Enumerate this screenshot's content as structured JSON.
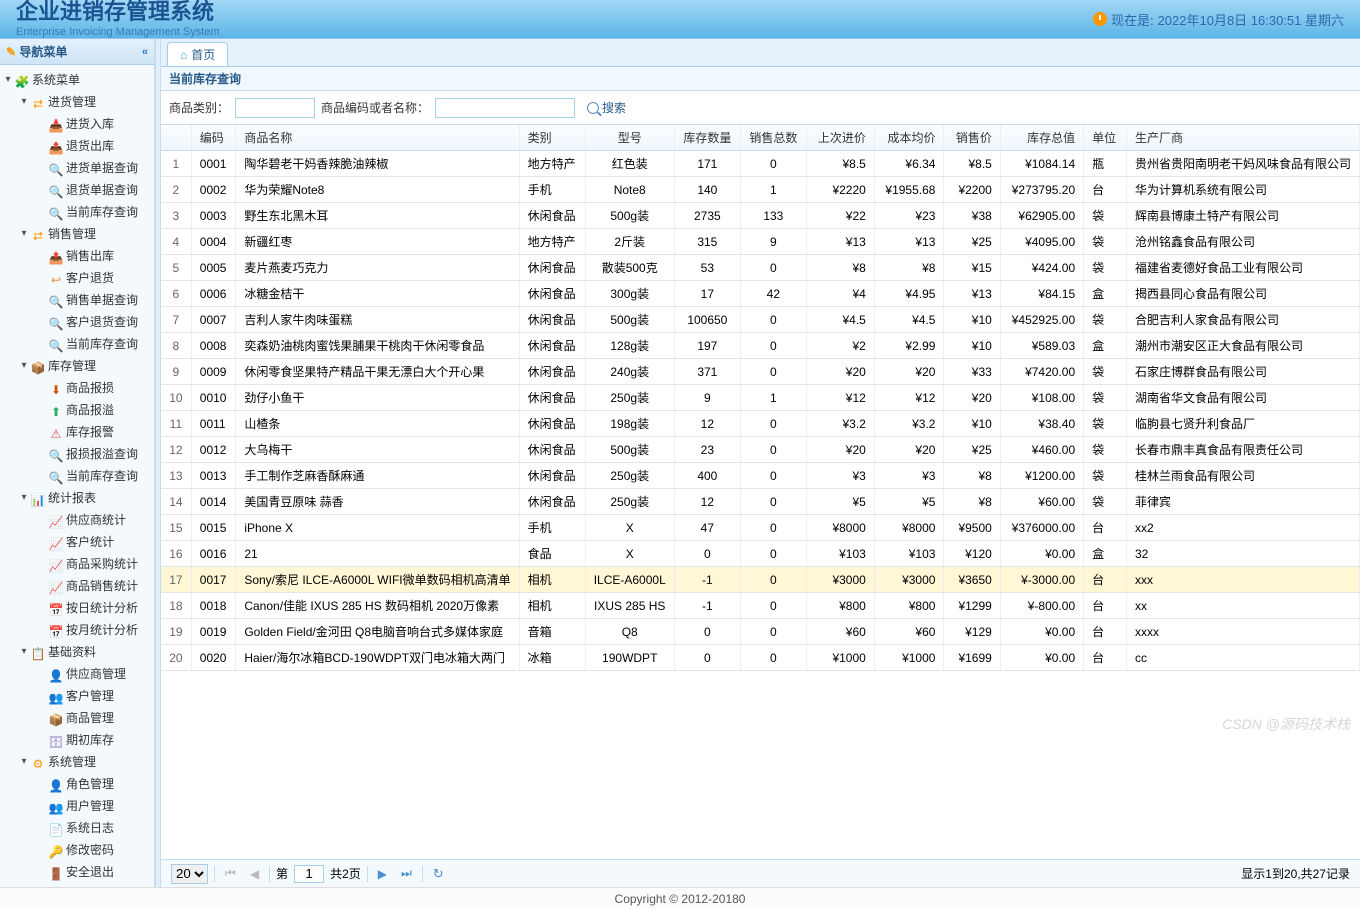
{
  "header": {
    "title": "企业进销存管理系统",
    "subtitle": "Enterprise Invoicing Management System",
    "time_prefix": "现在是:",
    "time_value": "2022年10月8日 16:30:51 星期六"
  },
  "sidebar": {
    "title": "导航菜单",
    "collapse_glyph": "«",
    "tree": [
      {
        "level": 0,
        "expand": "-",
        "icon": "🧩",
        "label": "系统菜单",
        "color": "#4caf50"
      },
      {
        "level": 1,
        "expand": "-",
        "icon": "⇄",
        "label": "进货管理",
        "color": "#ff9800"
      },
      {
        "level": 2,
        "expand": "",
        "icon": "📥",
        "label": "进货入库",
        "color": "#e69138"
      },
      {
        "level": 2,
        "expand": "",
        "icon": "📤",
        "label": "退货出库",
        "color": "#e69138"
      },
      {
        "level": 2,
        "expand": "",
        "icon": "🔍",
        "label": "进货单据查询",
        "color": "#3a7ab5"
      },
      {
        "level": 2,
        "expand": "",
        "icon": "🔍",
        "label": "退货单据查询",
        "color": "#3a7ab5"
      },
      {
        "level": 2,
        "expand": "",
        "icon": "🔍",
        "label": "当前库存查询",
        "color": "#3a7ab5"
      },
      {
        "level": 1,
        "expand": "-",
        "icon": "⇄",
        "label": "销售管理",
        "color": "#ff9800"
      },
      {
        "level": 2,
        "expand": "",
        "icon": "📤",
        "label": "销售出库",
        "color": "#e69138"
      },
      {
        "level": 2,
        "expand": "",
        "icon": "↩",
        "label": "客户退货",
        "color": "#e69138"
      },
      {
        "level": 2,
        "expand": "",
        "icon": "🔍",
        "label": "销售单据查询",
        "color": "#3a7ab5"
      },
      {
        "level": 2,
        "expand": "",
        "icon": "🔍",
        "label": "客户退货查询",
        "color": "#3a7ab5"
      },
      {
        "level": 2,
        "expand": "",
        "icon": "🔍",
        "label": "当前库存查询",
        "color": "#3a7ab5"
      },
      {
        "level": 1,
        "expand": "-",
        "icon": "📦",
        "label": "库存管理",
        "color": "#ff9800"
      },
      {
        "level": 2,
        "expand": "",
        "icon": "⬇",
        "label": "商品报损",
        "color": "#d35400"
      },
      {
        "level": 2,
        "expand": "",
        "icon": "⬆",
        "label": "商品报溢",
        "color": "#27ae60"
      },
      {
        "level": 2,
        "expand": "",
        "icon": "⚠",
        "label": "库存报警",
        "color": "#e74c3c"
      },
      {
        "level": 2,
        "expand": "",
        "icon": "🔍",
        "label": "报损报溢查询",
        "color": "#3a7ab5"
      },
      {
        "level": 2,
        "expand": "",
        "icon": "🔍",
        "label": "当前库存查询",
        "color": "#3a7ab5"
      },
      {
        "level": 1,
        "expand": "-",
        "icon": "📊",
        "label": "统计报表",
        "color": "#ff9800"
      },
      {
        "level": 2,
        "expand": "",
        "icon": "📈",
        "label": "供应商统计",
        "color": "#3498db"
      },
      {
        "level": 2,
        "expand": "",
        "icon": "📈",
        "label": "客户统计",
        "color": "#3498db"
      },
      {
        "level": 2,
        "expand": "",
        "icon": "📈",
        "label": "商品采购统计",
        "color": "#3498db"
      },
      {
        "level": 2,
        "expand": "",
        "icon": "📈",
        "label": "商品销售统计",
        "color": "#3498db"
      },
      {
        "level": 2,
        "expand": "",
        "icon": "📅",
        "label": "按日统计分析",
        "color": "#3498db"
      },
      {
        "level": 2,
        "expand": "",
        "icon": "📅",
        "label": "按月统计分析",
        "color": "#3498db"
      },
      {
        "level": 1,
        "expand": "-",
        "icon": "📋",
        "label": "基础资料",
        "color": "#ff9800"
      },
      {
        "level": 2,
        "expand": "",
        "icon": "👤",
        "label": "供应商管理",
        "color": "#f39c12"
      },
      {
        "level": 2,
        "expand": "",
        "icon": "👥",
        "label": "客户管理",
        "color": "#3498db"
      },
      {
        "level": 2,
        "expand": "",
        "icon": "📦",
        "label": "商品管理",
        "color": "#e69138"
      },
      {
        "level": 2,
        "expand": "",
        "icon": "🗄",
        "label": "期初库存",
        "color": "#8e7cc3"
      },
      {
        "level": 1,
        "expand": "-",
        "icon": "⚙",
        "label": "系统管理",
        "color": "#ff9800"
      },
      {
        "level": 2,
        "expand": "",
        "icon": "👤",
        "label": "角色管理",
        "color": "#3498db"
      },
      {
        "level": 2,
        "expand": "",
        "icon": "👥",
        "label": "用户管理",
        "color": "#27ae60"
      },
      {
        "level": 2,
        "expand": "",
        "icon": "📄",
        "label": "系统日志",
        "color": "#95a5a6"
      },
      {
        "level": 2,
        "expand": "",
        "icon": "🔑",
        "label": "修改密码",
        "color": "#f39c12"
      },
      {
        "level": 2,
        "expand": "",
        "icon": "🚪",
        "label": "安全退出",
        "color": "#e74c3c"
      }
    ]
  },
  "tabs": {
    "home": "首页"
  },
  "panel": {
    "title": "当前库存查询"
  },
  "search": {
    "label_category": "商品类别：",
    "label_code_name": "商品编码或者名称：",
    "button": "搜索",
    "category_value": "",
    "name_value": ""
  },
  "columns": {
    "idx": "",
    "code": "编码",
    "name": "商品名称",
    "category": "类别",
    "model": "型号",
    "qty": "库存数量",
    "sold": "销售总数",
    "lastp": "上次进价",
    "avgp": "成本均价",
    "salep": "销售价",
    "total": "库存总值",
    "unit": "单位",
    "maker": "生产厂商"
  },
  "rows": [
    {
      "idx": 1,
      "code": "0001",
      "name": "陶华碧老干妈香辣脆油辣椒",
      "cat": "地方特产",
      "model": "红色装",
      "qty": "171",
      "sold": "0",
      "lastp": "¥8.5",
      "avgp": "¥6.34",
      "salep": "¥8.5",
      "total": "¥1084.14",
      "unit": "瓶",
      "maker": "贵州省贵阳南明老干妈风味食品有限公司"
    },
    {
      "idx": 2,
      "code": "0002",
      "name": "华为荣耀Note8",
      "cat": "手机",
      "model": "Note8",
      "qty": "140",
      "sold": "1",
      "lastp": "¥2220",
      "avgp": "¥1955.68",
      "salep": "¥2200",
      "total": "¥273795.20",
      "unit": "台",
      "maker": "华为计算机系统有限公司"
    },
    {
      "idx": 3,
      "code": "0003",
      "name": "野生东北黑木耳",
      "cat": "休闲食品",
      "model": "500g装",
      "qty": "2735",
      "sold": "133",
      "lastp": "¥22",
      "avgp": "¥23",
      "salep": "¥38",
      "total": "¥62905.00",
      "unit": "袋",
      "maker": "辉南县博康土特产有限公司"
    },
    {
      "idx": 4,
      "code": "0004",
      "name": "新疆红枣",
      "cat": "地方特产",
      "model": "2斤装",
      "qty": "315",
      "sold": "9",
      "lastp": "¥13",
      "avgp": "¥13",
      "salep": "¥25",
      "total": "¥4095.00",
      "unit": "袋",
      "maker": "沧州铭鑫食品有限公司"
    },
    {
      "idx": 5,
      "code": "0005",
      "name": "麦片燕麦巧克力",
      "cat": "休闲食品",
      "model": "散装500克",
      "qty": "53",
      "sold": "0",
      "lastp": "¥8",
      "avgp": "¥8",
      "salep": "¥15",
      "total": "¥424.00",
      "unit": "袋",
      "maker": "福建省麦德好食品工业有限公司"
    },
    {
      "idx": 6,
      "code": "0006",
      "name": "冰糖金桔干",
      "cat": "休闲食品",
      "model": "300g装",
      "qty": "17",
      "sold": "42",
      "lastp": "¥4",
      "avgp": "¥4.95",
      "salep": "¥13",
      "total": "¥84.15",
      "unit": "盒",
      "maker": "揭西县同心食品有限公司"
    },
    {
      "idx": 7,
      "code": "0007",
      "name": "吉利人家牛肉味蛋糕",
      "cat": "休闲食品",
      "model": "500g装",
      "qty": "100650",
      "sold": "0",
      "lastp": "¥4.5",
      "avgp": "¥4.5",
      "salep": "¥10",
      "total": "¥452925.00",
      "unit": "袋",
      "maker": "合肥吉利人家食品有限公司"
    },
    {
      "idx": 8,
      "code": "0008",
      "name": "奕森奶油桃肉蜜饯果脯果干桃肉干休闲零食品",
      "cat": "休闲食品",
      "model": "128g装",
      "qty": "197",
      "sold": "0",
      "lastp": "¥2",
      "avgp": "¥2.99",
      "salep": "¥10",
      "total": "¥589.03",
      "unit": "盒",
      "maker": "潮州市潮安区正大食品有限公司"
    },
    {
      "idx": 9,
      "code": "0009",
      "name": "休闲零食坚果特产精品干果无漂白大个开心果",
      "cat": "休闲食品",
      "model": "240g装",
      "qty": "371",
      "sold": "0",
      "lastp": "¥20",
      "avgp": "¥20",
      "salep": "¥33",
      "total": "¥7420.00",
      "unit": "袋",
      "maker": "石家庄博群食品有限公司"
    },
    {
      "idx": 10,
      "code": "0010",
      "name": "劲仔小鱼干",
      "cat": "休闲食品",
      "model": "250g装",
      "qty": "9",
      "sold": "1",
      "lastp": "¥12",
      "avgp": "¥12",
      "salep": "¥20",
      "total": "¥108.00",
      "unit": "袋",
      "maker": "湖南省华文食品有限公司"
    },
    {
      "idx": 11,
      "code": "0011",
      "name": "山楂条",
      "cat": "休闲食品",
      "model": "198g装",
      "qty": "12",
      "sold": "0",
      "lastp": "¥3.2",
      "avgp": "¥3.2",
      "salep": "¥10",
      "total": "¥38.40",
      "unit": "袋",
      "maker": "临朐县七贤升利食品厂"
    },
    {
      "idx": 12,
      "code": "0012",
      "name": "大乌梅干",
      "cat": "休闲食品",
      "model": "500g装",
      "qty": "23",
      "sold": "0",
      "lastp": "¥20",
      "avgp": "¥20",
      "salep": "¥25",
      "total": "¥460.00",
      "unit": "袋",
      "maker": "长春市鼎丰真食品有限责任公司"
    },
    {
      "idx": 13,
      "code": "0013",
      "name": "手工制作芝麻香酥麻通",
      "cat": "休闲食品",
      "model": "250g装",
      "qty": "400",
      "sold": "0",
      "lastp": "¥3",
      "avgp": "¥3",
      "salep": "¥8",
      "total": "¥1200.00",
      "unit": "袋",
      "maker": "桂林兰雨食品有限公司"
    },
    {
      "idx": 14,
      "code": "0014",
      "name": "美国青豆原味 蒜香",
      "cat": "休闲食品",
      "model": "250g装",
      "qty": "12",
      "sold": "0",
      "lastp": "¥5",
      "avgp": "¥5",
      "salep": "¥8",
      "total": "¥60.00",
      "unit": "袋",
      "maker": "菲律宾"
    },
    {
      "idx": 15,
      "code": "0015",
      "name": "iPhone X",
      "cat": "手机",
      "model": "X",
      "qty": "47",
      "sold": "0",
      "lastp": "¥8000",
      "avgp": "¥8000",
      "salep": "¥9500",
      "total": "¥376000.00",
      "unit": "台",
      "maker": "xx2"
    },
    {
      "idx": 16,
      "code": "0016",
      "name": "21",
      "cat": "食品",
      "model": "X",
      "qty": "0",
      "sold": "0",
      "lastp": "¥103",
      "avgp": "¥103",
      "salep": "¥120",
      "total": "¥0.00",
      "unit": "盒",
      "maker": "32"
    },
    {
      "idx": 17,
      "code": "0017",
      "name": "Sony/索尼 ILCE-A6000L WIFI微单数码相机高清单",
      "cat": "相机",
      "model": "ILCE-A6000L",
      "qty": "-1",
      "sold": "0",
      "lastp": "¥3000",
      "avgp": "¥3000",
      "salep": "¥3650",
      "total": "¥-3000.00",
      "unit": "台",
      "maker": "xxx",
      "selected": true
    },
    {
      "idx": 18,
      "code": "0018",
      "name": "Canon/佳能 IXUS 285 HS 数码相机 2020万像素",
      "cat": "相机",
      "model": "IXUS 285 HS",
      "qty": "-1",
      "sold": "0",
      "lastp": "¥800",
      "avgp": "¥800",
      "salep": "¥1299",
      "total": "¥-800.00",
      "unit": "台",
      "maker": "xx"
    },
    {
      "idx": 19,
      "code": "0019",
      "name": "Golden Field/金河田 Q8电脑音响台式多媒体家庭",
      "cat": "音箱",
      "model": "Q8",
      "qty": "0",
      "sold": "0",
      "lastp": "¥60",
      "avgp": "¥60",
      "salep": "¥129",
      "total": "¥0.00",
      "unit": "台",
      "maker": "xxxx"
    },
    {
      "idx": 20,
      "code": "0020",
      "name": "Haier/海尔冰箱BCD-190WDPT双门电冰箱大两门",
      "cat": "冰箱",
      "model": "190WDPT",
      "qty": "0",
      "sold": "0",
      "lastp": "¥1000",
      "avgp": "¥1000",
      "salep": "¥1699",
      "total": "¥0.00",
      "unit": "台",
      "maker": "cc"
    }
  ],
  "pager": {
    "page_size": "20",
    "page_label_prefix": "第",
    "page_value": "1",
    "page_total": "共2页",
    "info": "显示1到20,共27记录"
  },
  "footer": "Copyright © 2012-20180",
  "watermark": "CSDN @源码技术栈"
}
